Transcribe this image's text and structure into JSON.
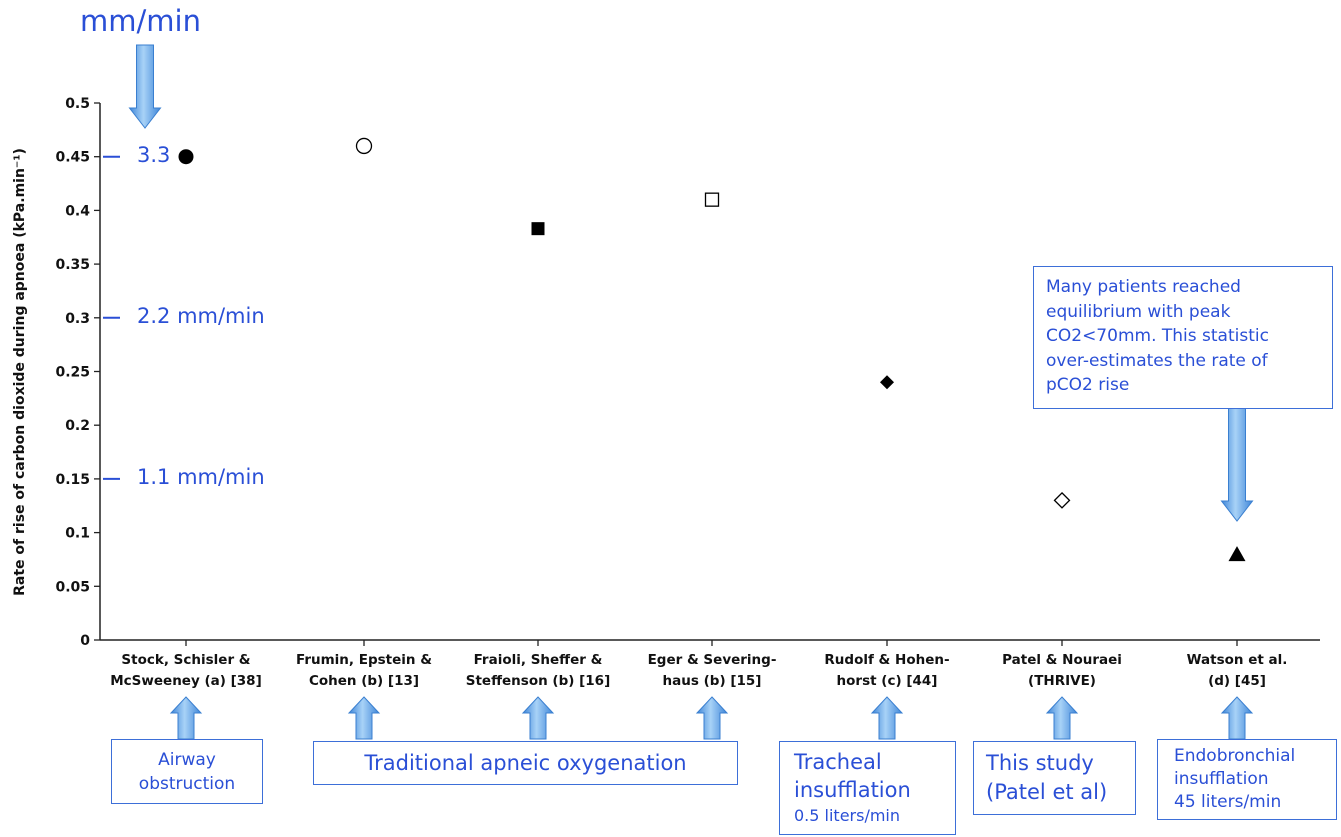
{
  "chart_data": {
    "type": "scatter",
    "title": "",
    "xlabel": "",
    "ylabel": "Rate of rise of carbon dioxide during apnoea (kPa.min⁻¹)",
    "ylim": [
      0,
      0.5
    ],
    "yticks": [
      "0",
      "0.05",
      "0.1",
      "0.15",
      "0.2",
      "0.25",
      "0.3",
      "0.35",
      "0.4",
      "0.45",
      "0.5"
    ],
    "grid": false,
    "categories": [
      [
        "Stock, Schisler &",
        "McSweeney (a)  [38]"
      ],
      [
        "Frumin, Epstein &",
        "Cohen (b)  [13]"
      ],
      [
        "Fraioli, Sheffer &",
        "Steffenson (b)  [16]"
      ],
      [
        "Eger & Severing-",
        "haus (b)  [15]"
      ],
      [
        "Rudolf & Hohen-",
        "horst (c)  [44]"
      ],
      [
        "Patel & Nouraei",
        "(THRIVE)"
      ],
      [
        "Watson et al.",
        "(d)  [45]"
      ]
    ],
    "points": [
      {
        "value": 0.45,
        "marker": "filled-circle"
      },
      {
        "value": 0.46,
        "marker": "open-circle"
      },
      {
        "value": 0.383,
        "marker": "filled-square"
      },
      {
        "value": 0.41,
        "marker": "open-square"
      },
      {
        "value": 0.24,
        "marker": "filled-diamond"
      },
      {
        "value": 0.13,
        "marker": "open-diamond"
      },
      {
        "value": 0.08,
        "marker": "filled-triangle"
      }
    ]
  },
  "annotations": {
    "unit_title": "mm/min",
    "mm_labels": [
      {
        "value": 0.45,
        "label": "3.3"
      },
      {
        "value": 0.3,
        "label": "2.2 mm/min"
      },
      {
        "value": 0.15,
        "label": "1.1 mm/min"
      }
    ],
    "callout": [
      "Many patients reached",
      "equilibrium with peak",
      "CO2<70mm.  This statistic",
      "over-estimates the rate of",
      "pCO2 rise"
    ],
    "boxes": {
      "airway": [
        "Airway",
        "obstruction"
      ],
      "traditional": "Traditional apneic oxygenation",
      "tracheal": [
        "Tracheal",
        "insufflation"
      ],
      "tracheal_flow": "0.5 liters/min",
      "this_study": [
        "This study",
        "(Patel et al)"
      ],
      "endobronchial": [
        "Endobronchial",
        "insufflation",
        "45 liters/min"
      ]
    }
  },
  "colors": {
    "accent": "#2a4fd6",
    "arrow_fill": "#5aa0e6",
    "box_border": "#3d6fd8",
    "axis": "#222222"
  }
}
